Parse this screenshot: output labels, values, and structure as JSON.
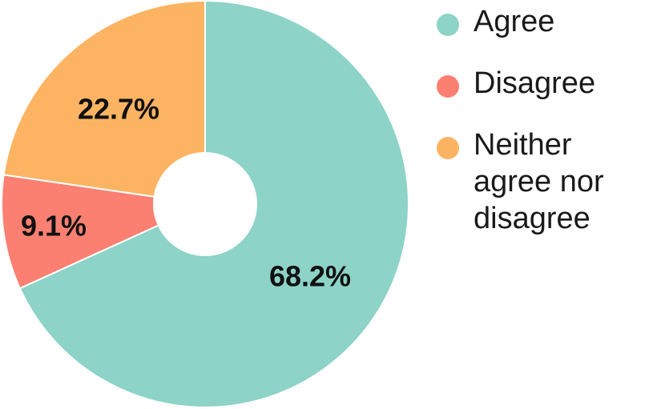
{
  "chart_data": {
    "type": "pie",
    "style": "donut",
    "title": "",
    "legend_position": "right",
    "slices": [
      {
        "label": "Agree",
        "value": 68.2,
        "value_label": "68.2%",
        "color": "#8dd3c7"
      },
      {
        "label": "Disagree",
        "value": 9.1,
        "value_label": "9.1%",
        "color": "#fb8072"
      },
      {
        "label": "Neither agree nor disagree",
        "value": 22.7,
        "value_label": "22.7%",
        "color": "#fdb462"
      }
    ]
  },
  "legend": {
    "items": [
      {
        "label": "Agree",
        "color": "#8dd3c7"
      },
      {
        "label": "Disagree",
        "color": "#fb8072"
      },
      {
        "label": "Neither agree nor disagree",
        "color": "#fdb462"
      }
    ]
  }
}
